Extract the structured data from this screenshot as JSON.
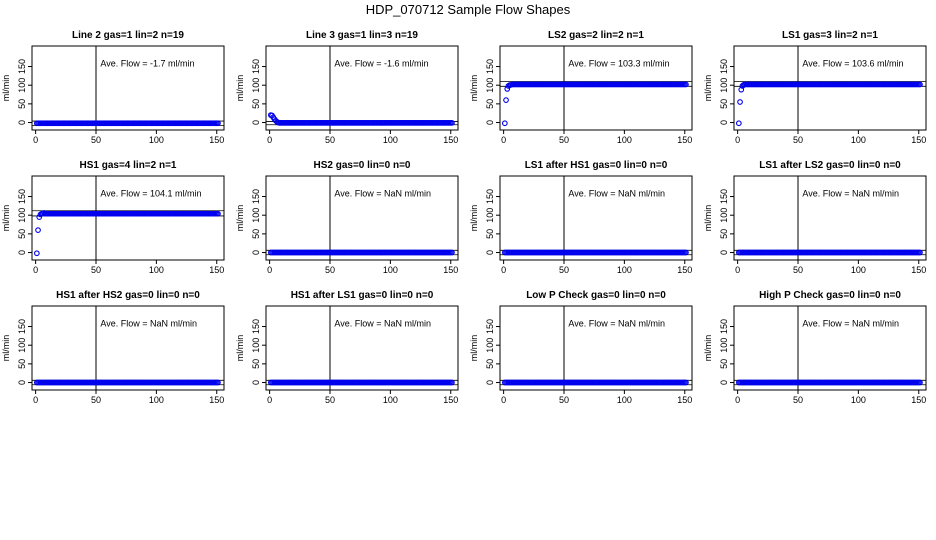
{
  "figure": {
    "title": "HDP_070712  Sample Flow Shapes"
  },
  "chart_data": [
    {
      "type": "scatter",
      "title": "Line 2 gas=1 lin=2 n=19",
      "ylabel": "ml/min",
      "xlim": [
        0,
        150
      ],
      "ylim": [
        -20,
        200
      ],
      "xticks": [
        "0",
        "50",
        "100",
        "150"
      ],
      "yticks": [
        "0",
        "50",
        "100",
        "150"
      ],
      "marker_color": "#0000ee",
      "vline_x": 50,
      "hlines_y": [
        -8,
        4
      ],
      "annotation": "Ave. Flow =  -1.7  ml/min",
      "series": [
        {
          "x": [
            1,
            151
          ],
          "y": [
            -2,
            -2
          ],
          "repeat": "flat"
        }
      ],
      "points": {
        "start": [],
        "flat_from": 1,
        "flat_to": 151,
        "flat_y": -2
      }
    },
    {
      "type": "scatter",
      "title": "Line 3 gas=1 lin=3 n=19",
      "ylabel": "ml/min",
      "xlim": [
        0,
        150
      ],
      "ylim": [
        -20,
        200
      ],
      "xticks": [
        "0",
        "50",
        "100",
        "150"
      ],
      "yticks": [
        "0",
        "50",
        "100",
        "150"
      ],
      "marker_color": "#0000ee",
      "vline_x": 50,
      "hlines_y": [
        -6,
        3
      ],
      "annotation": "Ave. Flow =  -1.6  ml/min",
      "points": {
        "start": [
          [
            1,
            20
          ],
          [
            2,
            19
          ],
          [
            3,
            14
          ],
          [
            4,
            9
          ],
          [
            5,
            5
          ],
          [
            6,
            2
          ],
          [
            7,
            0
          ]
        ],
        "flat_from": 8,
        "flat_to": 151,
        "flat_y": -1
      }
    },
    {
      "type": "scatter",
      "title": "LS2 gas=2 lin=2 n=1",
      "ylabel": "ml/min",
      "xlim": [
        0,
        150
      ],
      "ylim": [
        -20,
        200
      ],
      "xticks": [
        "0",
        "50",
        "100",
        "150"
      ],
      "yticks": [
        "0",
        "50",
        "100",
        "150"
      ],
      "marker_color": "#0000ee",
      "vline_x": 50,
      "hlines_y": [
        97,
        110
      ],
      "annotation": "Ave. Flow =  103.3  ml/min",
      "points": {
        "start": [
          [
            1,
            -2
          ],
          [
            2,
            60
          ],
          [
            3,
            90
          ],
          [
            4,
            98
          ],
          [
            5,
            100
          ],
          [
            6,
            101
          ],
          [
            7,
            102
          ]
        ],
        "flat_from": 8,
        "flat_to": 151,
        "flat_y": 102
      }
    },
    {
      "type": "scatter",
      "title": "LS1 gas=3 lin=2 n=1",
      "ylabel": "ml/min",
      "xlim": [
        0,
        150
      ],
      "ylim": [
        -20,
        200
      ],
      "xticks": [
        "0",
        "50",
        "100",
        "150"
      ],
      "yticks": [
        "0",
        "50",
        "100",
        "150"
      ],
      "marker_color": "#0000ee",
      "vline_x": 50,
      "hlines_y": [
        97,
        110
      ],
      "annotation": "Ave. Flow =  103.6  ml/min",
      "points": {
        "start": [
          [
            1,
            -2
          ],
          [
            2,
            55
          ],
          [
            3,
            88
          ],
          [
            4,
            98
          ],
          [
            5,
            101
          ],
          [
            6,
            102
          ],
          [
            7,
            102
          ]
        ],
        "flat_from": 8,
        "flat_to": 151,
        "flat_y": 102
      }
    },
    {
      "type": "scatter",
      "title": "HS1 gas=4 lin=2 n=1",
      "ylabel": "ml/min",
      "xlim": [
        0,
        150
      ],
      "ylim": [
        -20,
        200
      ],
      "xticks": [
        "0",
        "50",
        "100",
        "150"
      ],
      "yticks": [
        "0",
        "50",
        "100",
        "150"
      ],
      "marker_color": "#0000ee",
      "vline_x": 50,
      "hlines_y": [
        98,
        112
      ],
      "annotation": "Ave. Flow =  104.1  ml/min",
      "points": {
        "start": [
          [
            1,
            -2
          ],
          [
            2,
            60
          ],
          [
            3,
            95
          ],
          [
            4,
            102
          ],
          [
            5,
            104
          ],
          [
            6,
            105
          ],
          [
            7,
            106
          ]
        ],
        "flat_from": 8,
        "flat_to": 151,
        "flat_y": 104
      }
    },
    {
      "type": "scatter",
      "title": "HS2 gas=0 lin=0 n=0",
      "ylabel": "ml/min",
      "xlim": [
        0,
        150
      ],
      "ylim": [
        -20,
        200
      ],
      "xticks": [
        "0",
        "50",
        "100",
        "150"
      ],
      "yticks": [
        "0",
        "50",
        "100",
        "150"
      ],
      "marker_color": "#0000ee",
      "vline_x": 50,
      "hlines_y": [
        -6,
        6
      ],
      "annotation": "Ave. Flow =  NaN  ml/min",
      "points": {
        "start": [],
        "flat_from": 1,
        "flat_to": 151,
        "flat_y": 0
      }
    },
    {
      "type": "scatter",
      "title": "LS1 after HS1 gas=0 lin=0 n=0",
      "ylabel": "ml/min",
      "xlim": [
        0,
        150
      ],
      "ylim": [
        -20,
        200
      ],
      "xticks": [
        "0",
        "50",
        "100",
        "150"
      ],
      "yticks": [
        "0",
        "50",
        "100",
        "150"
      ],
      "marker_color": "#0000ee",
      "vline_x": 50,
      "hlines_y": [
        -6,
        6
      ],
      "annotation": "Ave. Flow =  NaN  ml/min",
      "points": {
        "start": [],
        "flat_from": 1,
        "flat_to": 151,
        "flat_y": 0
      }
    },
    {
      "type": "scatter",
      "title": "LS1 after LS2 gas=0 lin=0 n=0",
      "ylabel": "ml/min",
      "xlim": [
        0,
        150
      ],
      "ylim": [
        -20,
        200
      ],
      "xticks": [
        "0",
        "50",
        "100",
        "150"
      ],
      "yticks": [
        "0",
        "50",
        "100",
        "150"
      ],
      "marker_color": "#0000ee",
      "vline_x": 50,
      "hlines_y": [
        -6,
        6
      ],
      "annotation": "Ave. Flow =  NaN  ml/min",
      "points": {
        "start": [],
        "flat_from": 1,
        "flat_to": 151,
        "flat_y": 0
      }
    },
    {
      "type": "scatter",
      "title": "HS1 after HS2 gas=0 lin=0 n=0",
      "ylabel": "ml/min",
      "xlim": [
        0,
        150
      ],
      "ylim": [
        -20,
        200
      ],
      "xticks": [
        "0",
        "50",
        "100",
        "150"
      ],
      "yticks": [
        "0",
        "50",
        "100",
        "150"
      ],
      "marker_color": "#0000ee",
      "vline_x": 50,
      "hlines_y": [
        -6,
        6
      ],
      "annotation": "Ave. Flow =  NaN  ml/min",
      "points": {
        "start": [],
        "flat_from": 1,
        "flat_to": 151,
        "flat_y": 0
      }
    },
    {
      "type": "scatter",
      "title": "HS1 after LS1 gas=0 lin=0 n=0",
      "ylabel": "ml/min",
      "xlim": [
        0,
        150
      ],
      "ylim": [
        -20,
        200
      ],
      "xticks": [
        "0",
        "50",
        "100",
        "150"
      ],
      "yticks": [
        "0",
        "50",
        "100",
        "150"
      ],
      "marker_color": "#0000ee",
      "vline_x": 50,
      "hlines_y": [
        -6,
        6
      ],
      "annotation": "Ave. Flow =  NaN  ml/min",
      "points": {
        "start": [],
        "flat_from": 1,
        "flat_to": 151,
        "flat_y": 0
      }
    },
    {
      "type": "scatter",
      "title": "Low P Check gas=0 lin=0 n=0",
      "ylabel": "ml/min",
      "xlim": [
        0,
        150
      ],
      "ylim": [
        -20,
        200
      ],
      "xticks": [
        "0",
        "50",
        "100",
        "150"
      ],
      "yticks": [
        "0",
        "50",
        "100",
        "150"
      ],
      "marker_color": "#0000ee",
      "vline_x": 50,
      "hlines_y": [
        -6,
        6
      ],
      "annotation": "Ave. Flow =  NaN  ml/min",
      "points": {
        "start": [],
        "flat_from": 1,
        "flat_to": 151,
        "flat_y": 0
      }
    },
    {
      "type": "scatter",
      "title": "High P Check gas=0 lin=0 n=0",
      "ylabel": "ml/min",
      "xlim": [
        0,
        150
      ],
      "ylim": [
        -20,
        200
      ],
      "xticks": [
        "0",
        "50",
        "100",
        "150"
      ],
      "yticks": [
        "0",
        "50",
        "100",
        "150"
      ],
      "marker_color": "#0000ee",
      "vline_x": 50,
      "hlines_y": [
        -6,
        6
      ],
      "annotation": "Ave. Flow =  NaN  ml/min",
      "points": {
        "start": [],
        "flat_from": 1,
        "flat_to": 151,
        "flat_y": 0
      }
    }
  ]
}
